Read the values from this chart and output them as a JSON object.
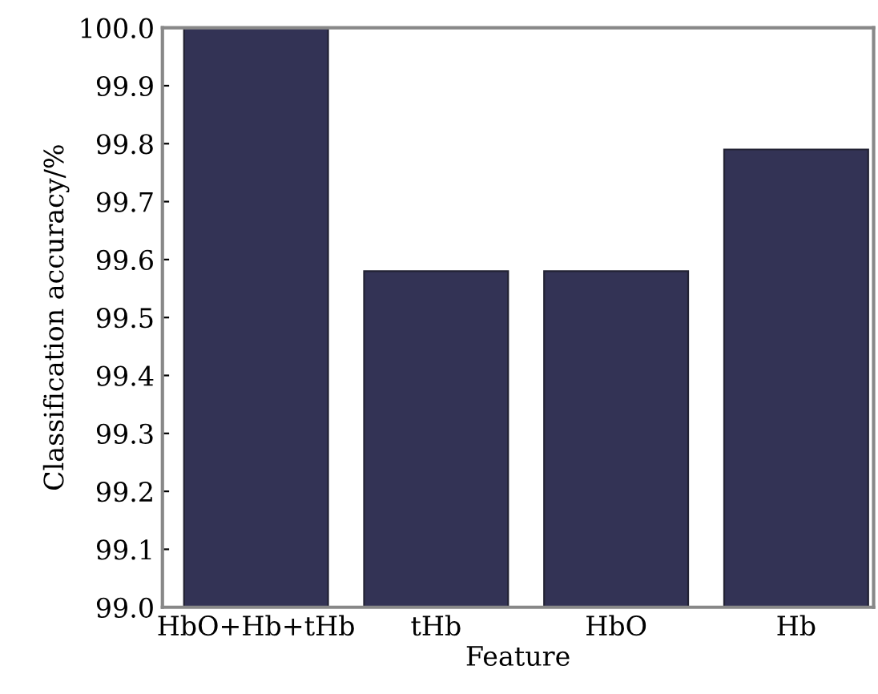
{
  "chart_data": {
    "type": "bar",
    "xlabel": "Feature",
    "ylabel": "Classification accuracy/%",
    "categories": [
      "HbO+Hb+tHb",
      "tHb",
      "HbO",
      "Hb"
    ],
    "values": [
      100.0,
      99.58,
      99.58,
      99.79
    ],
    "color": "#333355",
    "ylim": [
      99.0,
      100.0
    ],
    "yticks": [
      {
        "value": 99.0,
        "label": "99.0"
      },
      99.1,
      99.2,
      99.3,
      99.4,
      99.5,
      99.6,
      99.7,
      99.8,
      99.9,
      {
        "value": 100.0,
        "label": "100.0"
      }
    ],
    "grid": false
  }
}
